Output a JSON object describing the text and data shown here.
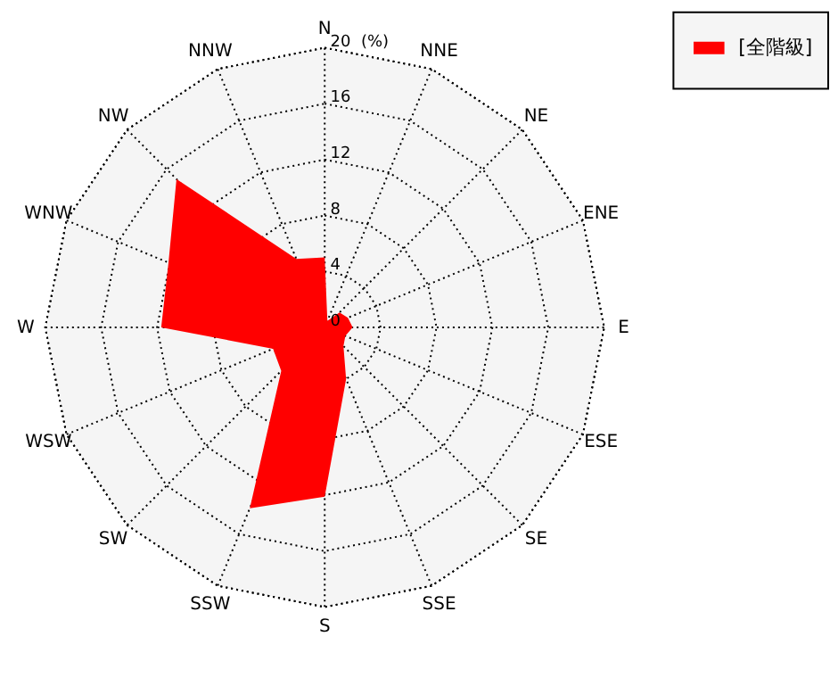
{
  "chart_data": {
    "type": "radar",
    "categories": [
      "N",
      "NNE",
      "NE",
      "ENE",
      "E",
      "ESE",
      "SE",
      "SSE",
      "S",
      "SSW",
      "SW",
      "WSW",
      "W",
      "WNW",
      "NW",
      "NNW"
    ],
    "series": [
      {
        "name": "[全階級]",
        "color": "#ff0000",
        "values": [
          5.0,
          0.5,
          1.5,
          1.8,
          2.0,
          1.6,
          1.9,
          4.0,
          12.1,
          14.0,
          4.4,
          4.0,
          11.7,
          12.1,
          15.0,
          5.3
        ]
      }
    ],
    "ylim": [
      0,
      20
    ],
    "yticks": [
      0,
      4,
      8,
      12,
      16,
      20
    ],
    "ylabel": "(%)",
    "legend": "top right",
    "grid": true
  }
}
